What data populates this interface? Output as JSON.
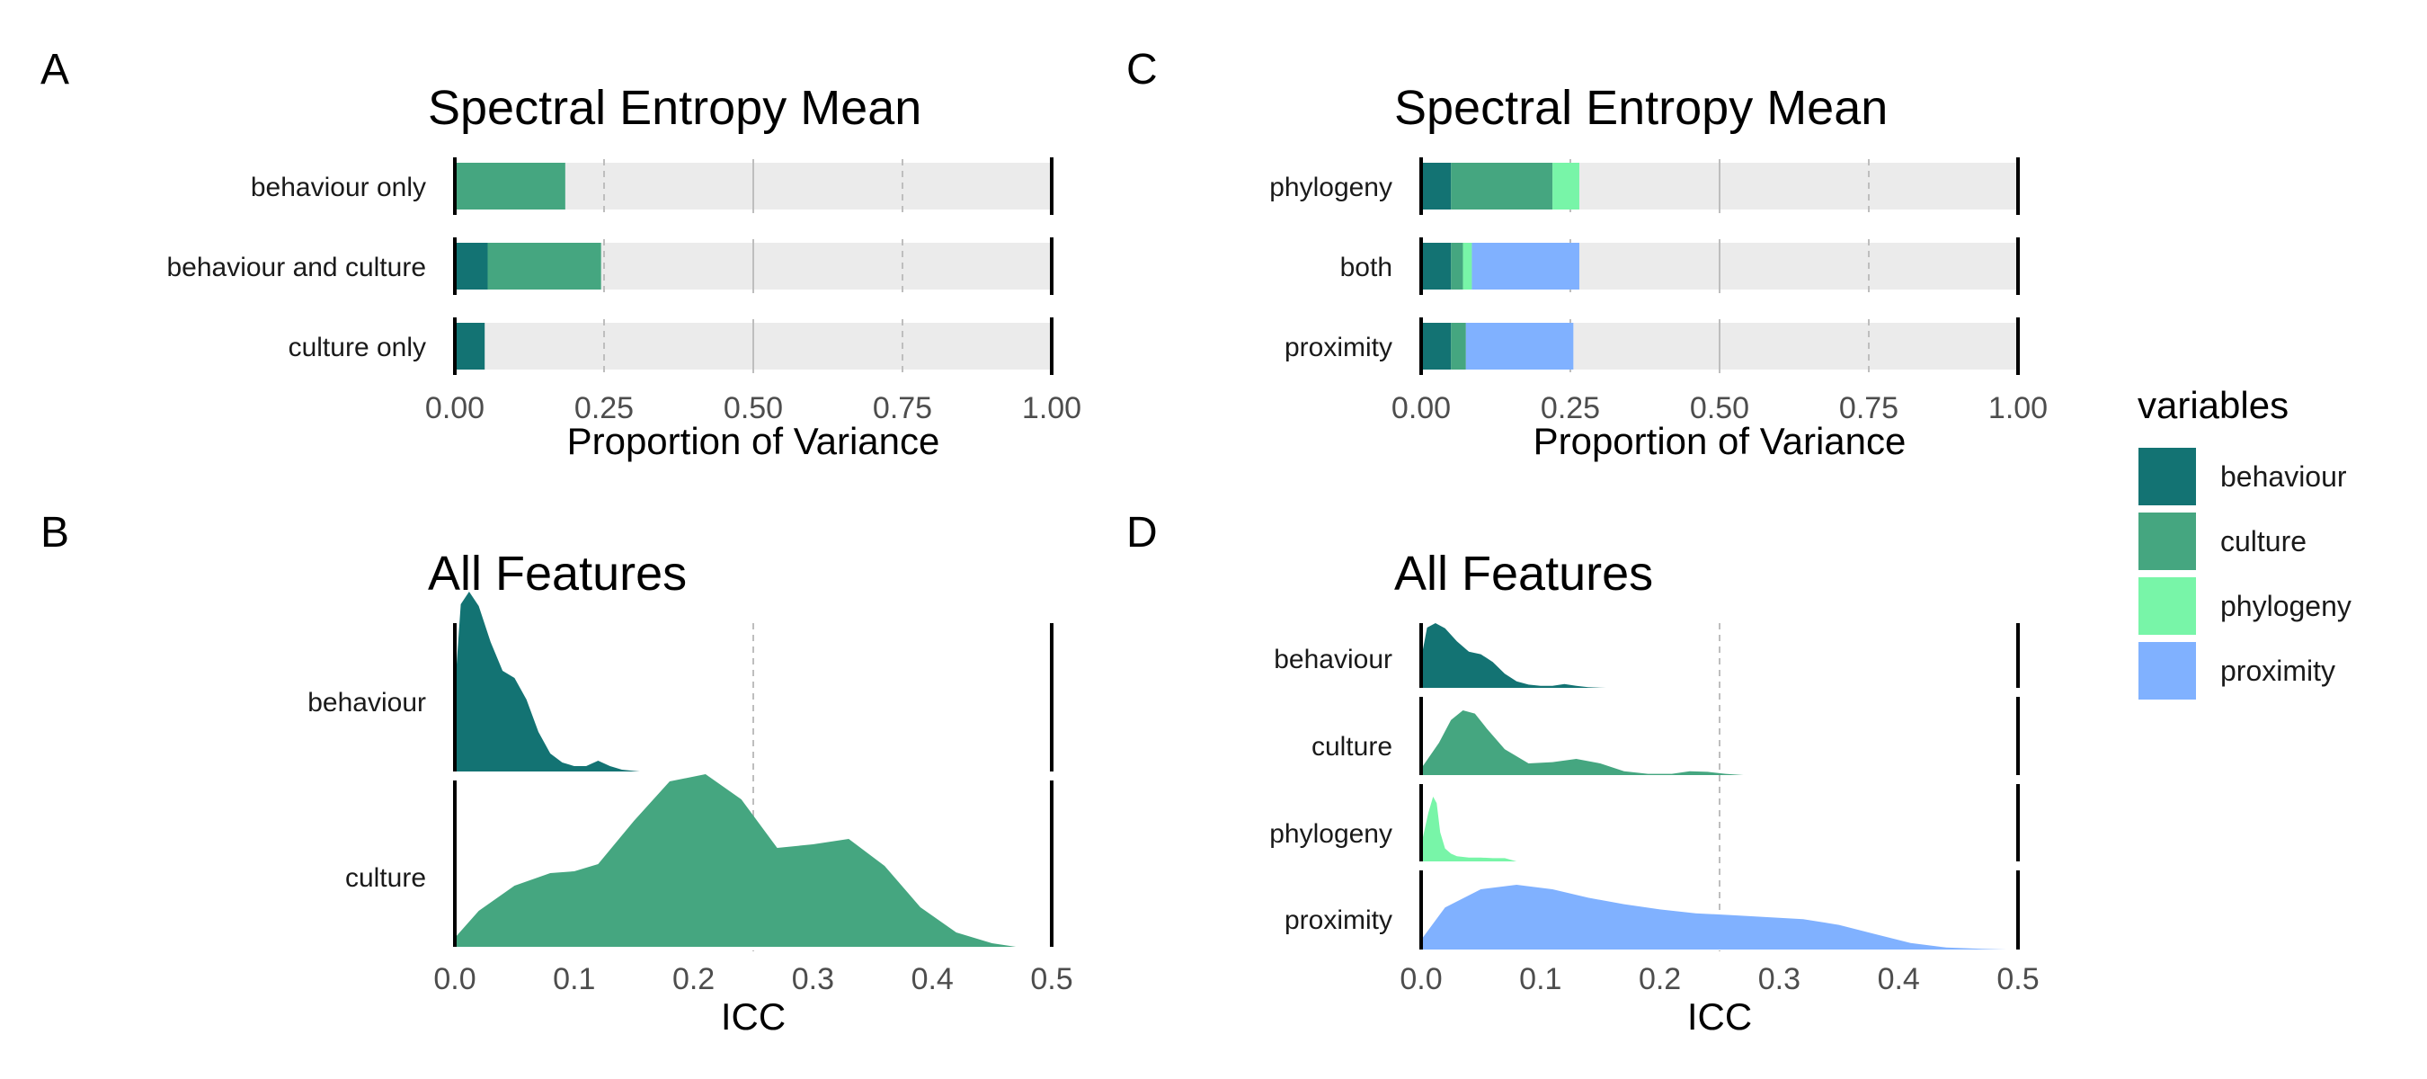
{
  "colors": {
    "behaviour": "#137373",
    "culture": "#45A680",
    "phylogeny": "#78F5A8",
    "proximity": "#80B1FF",
    "track": "#EBEBEB",
    "grid": "#BEBEBE"
  },
  "legend": {
    "title": "variables",
    "items": [
      "behaviour",
      "culture",
      "phylogeny",
      "proximity"
    ]
  },
  "chart_data": [
    {
      "panel_label": "A",
      "type": "bar",
      "stacked": true,
      "orientation": "horizontal",
      "title": "Spectral Entropy Mean",
      "xlabel": "Proportion of Variance",
      "xlim": [
        0,
        1
      ],
      "xticks": [
        "0.00",
        "0.25",
        "0.50",
        "0.75",
        "1.00"
      ],
      "categories": [
        "behaviour only",
        "behaviour and culture",
        "culture only"
      ],
      "series": [
        {
          "name": "behaviour",
          "values": [
            0,
            0.055,
            0.05
          ]
        },
        {
          "name": "culture",
          "values": [
            0.185,
            0.19,
            0
          ]
        }
      ]
    },
    {
      "panel_label": "B",
      "type": "area",
      "subtype": "ridgeline-density",
      "title": "All Features",
      "xlabel": "ICC",
      "xlim": [
        0,
        0.5
      ],
      "xticks": [
        "0.0",
        "0.1",
        "0.2",
        "0.3",
        "0.4",
        "0.5"
      ],
      "reference_line": 0.25,
      "categories": [
        "behaviour",
        "culture"
      ],
      "series": [
        {
          "name": "behaviour",
          "x": [
            0,
            0.005,
            0.012,
            0.02,
            0.03,
            0.04,
            0.05,
            0.06,
            0.07,
            0.08,
            0.09,
            0.1,
            0.11,
            0.12,
            0.13,
            0.14,
            0.155
          ],
          "density": [
            0.45,
            0.93,
            1.0,
            0.92,
            0.72,
            0.56,
            0.52,
            0.4,
            0.22,
            0.1,
            0.05,
            0.03,
            0.03,
            0.06,
            0.03,
            0.01,
            0
          ]
        },
        {
          "name": "culture",
          "x": [
            0,
            0.02,
            0.05,
            0.08,
            0.1,
            0.12,
            0.15,
            0.18,
            0.21,
            0.24,
            0.27,
            0.3,
            0.33,
            0.36,
            0.39,
            0.42,
            0.45,
            0.47
          ],
          "density": [
            0.05,
            0.2,
            0.34,
            0.41,
            0.42,
            0.46,
            0.7,
            0.92,
            0.96,
            0.82,
            0.55,
            0.57,
            0.6,
            0.45,
            0.22,
            0.08,
            0.02,
            0
          ]
        }
      ]
    },
    {
      "panel_label": "C",
      "type": "bar",
      "stacked": true,
      "orientation": "horizontal",
      "title": "Spectral Entropy Mean",
      "xlabel": "Proportion of Variance",
      "xlim": [
        0,
        1
      ],
      "xticks": [
        "0.00",
        "0.25",
        "0.50",
        "0.75",
        "1.00"
      ],
      "categories": [
        "phylogeny",
        "both",
        "proximity"
      ],
      "series": [
        {
          "name": "behaviour",
          "values": [
            0.05,
            0.05,
            0.05
          ]
        },
        {
          "name": "culture",
          "values": [
            0.17,
            0.02,
            0.025
          ]
        },
        {
          "name": "phylogeny",
          "values": [
            0.045,
            0.015,
            0
          ]
        },
        {
          "name": "proximity",
          "values": [
            0,
            0.18,
            0.18
          ]
        }
      ]
    },
    {
      "panel_label": "D",
      "type": "area",
      "subtype": "ridgeline-density",
      "title": "All Features",
      "xlabel": "ICC",
      "xlim": [
        0,
        0.5
      ],
      "xticks": [
        "0.0",
        "0.1",
        "0.2",
        "0.3",
        "0.4",
        "0.5"
      ],
      "reference_line": 0.25,
      "categories": [
        "behaviour",
        "culture",
        "phylogeny",
        "proximity"
      ],
      "series": [
        {
          "name": "behaviour",
          "x": [
            0,
            0.005,
            0.012,
            0.02,
            0.03,
            0.04,
            0.05,
            0.06,
            0.07,
            0.08,
            0.09,
            0.1,
            0.11,
            0.12,
            0.13,
            0.14,
            0.155
          ],
          "density": [
            0.45,
            0.93,
            1.0,
            0.92,
            0.72,
            0.56,
            0.52,
            0.4,
            0.22,
            0.1,
            0.05,
            0.03,
            0.03,
            0.06,
            0.03,
            0.01,
            0
          ]
        },
        {
          "name": "culture",
          "x": [
            0,
            0.015,
            0.025,
            0.035,
            0.045,
            0.055,
            0.07,
            0.09,
            0.11,
            0.13,
            0.15,
            0.17,
            0.19,
            0.21,
            0.225,
            0.24,
            0.255,
            0.27
          ],
          "density": [
            0.1,
            0.5,
            0.85,
            1.0,
            0.95,
            0.72,
            0.4,
            0.18,
            0.2,
            0.25,
            0.18,
            0.06,
            0.02,
            0.02,
            0.06,
            0.05,
            0.02,
            0
          ]
        },
        {
          "name": "phylogeny",
          "x": [
            0,
            0.006,
            0.01,
            0.013,
            0.016,
            0.02,
            0.025,
            0.03,
            0.04,
            0.05,
            0.06,
            0.07,
            0.08
          ],
          "density": [
            0.25,
            0.75,
            1.0,
            0.9,
            0.45,
            0.2,
            0.12,
            0.08,
            0.06,
            0.06,
            0.05,
            0.05,
            0
          ]
        },
        {
          "name": "proximity",
          "x": [
            0,
            0.02,
            0.05,
            0.08,
            0.11,
            0.14,
            0.17,
            0.2,
            0.23,
            0.26,
            0.29,
            0.32,
            0.35,
            0.38,
            0.41,
            0.44,
            0.47,
            0.49
          ],
          "density": [
            0.15,
            0.65,
            0.93,
            1.0,
            0.93,
            0.8,
            0.7,
            0.62,
            0.56,
            0.53,
            0.5,
            0.47,
            0.38,
            0.24,
            0.1,
            0.03,
            0.01,
            0
          ]
        }
      ]
    }
  ]
}
